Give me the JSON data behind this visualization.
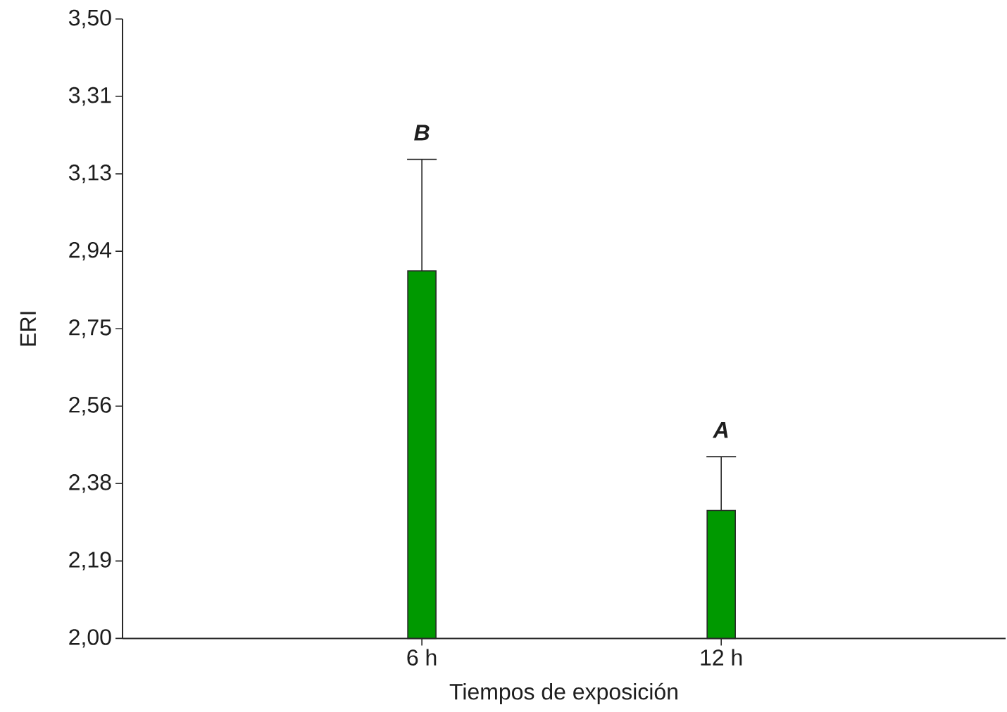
{
  "chart_data": {
    "type": "bar",
    "xlabel": "Tiempos de exposición",
    "ylabel": "ERI",
    "categories": [
      "6 h",
      "12 h"
    ],
    "values": [
      2.89,
      2.31
    ],
    "errors": [
      [
        2.89,
        3.16
      ],
      [
        2.31,
        2.44
      ]
    ],
    "color": "#009900",
    "ylim": [
      2.0,
      3.5
    ],
    "yticks": [
      {
        "value": 2.0,
        "label": "2,00"
      },
      {
        "value": 2.1875,
        "label": "2,19"
      },
      {
        "value": 2.375,
        "label": "2,38"
      },
      {
        "value": 2.5625,
        "label": "2,56"
      },
      {
        "value": 2.75,
        "label": "2,75"
      },
      {
        "value": 2.9375,
        "label": "2,94"
      },
      {
        "value": 3.125,
        "label": "3,13"
      },
      {
        "value": 3.3125,
        "label": "3,31"
      },
      {
        "value": 3.5,
        "label": "3,50"
      }
    ],
    "annotations": [
      "B",
      "A"
    ]
  }
}
